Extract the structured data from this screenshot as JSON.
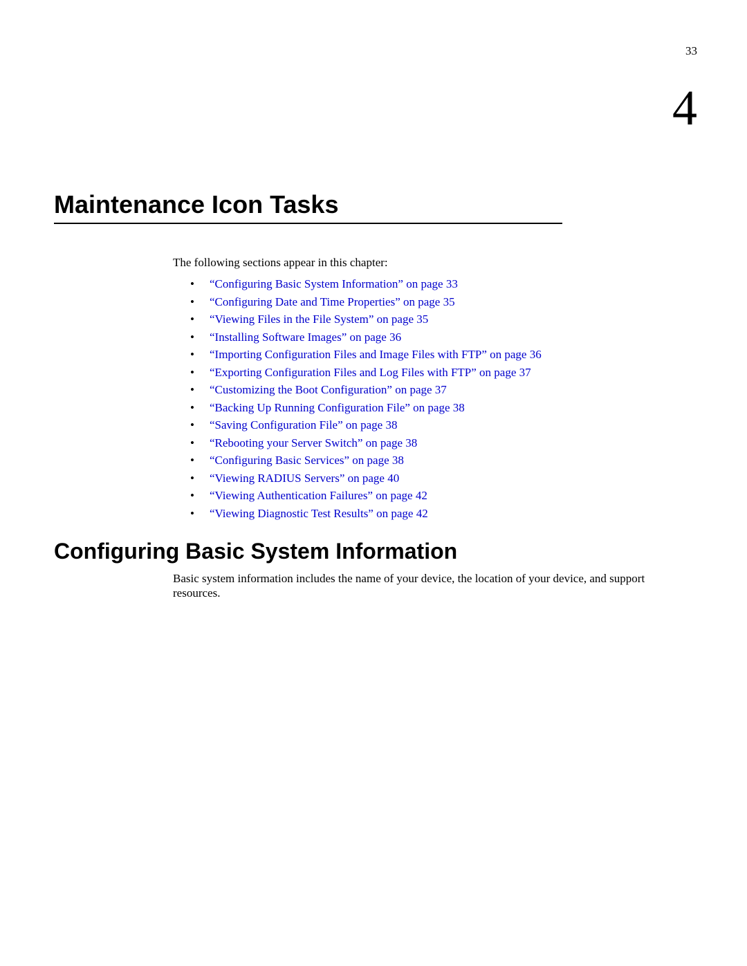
{
  "page_number": "33",
  "chapter_number": "4",
  "chapter_title": "Maintenance Icon Tasks",
  "intro_text": "The following sections appear in this chapter:",
  "toc_items": [
    "“Configuring Basic System Information” on page 33",
    "“Configuring Date and Time Properties” on page 35",
    "“Viewing Files in the File System” on page 35",
    "“Installing Software Images” on page 36",
    "“Importing Configuration Files and Image Files with FTP” on page 36",
    "“Exporting Configuration Files and Log Files with FTP” on page 37",
    "“Customizing the Boot Configuration” on page 37",
    "“Backing Up Running Configuration File” on page 38",
    "“Saving Configuration File” on page 38",
    "“Rebooting your Server Switch” on page 38",
    "“Configuring Basic Services” on page 38",
    "“Viewing RADIUS Servers” on page 40",
    "“Viewing Authentication Failures” on page 42",
    "“Viewing Diagnostic Test Results” on page 42"
  ],
  "section_heading": "Configuring Basic System Information",
  "section_body": "Basic system information includes the name of your device, the location of your device, and support resources.",
  "colors": {
    "link_color": "#0000cc",
    "text_color": "#000000",
    "background": "#ffffff"
  },
  "typography": {
    "body_font": "Georgia, serif",
    "heading_font": "Arial, Helvetica, sans-serif",
    "body_size_pt": 12,
    "chapter_title_size_pt": 27,
    "chapter_number_size_pt": 54,
    "section_heading_size_pt": 24
  }
}
